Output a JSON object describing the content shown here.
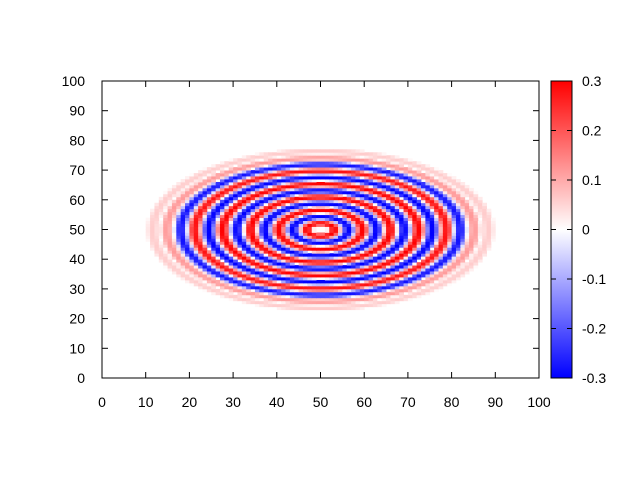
{
  "chart_data": {
    "type": "heatmap",
    "title": "",
    "xlabel": "",
    "ylabel": "",
    "xlim": [
      0,
      100
    ],
    "ylim": [
      0,
      100
    ],
    "x_ticks": [
      0,
      10,
      20,
      30,
      40,
      50,
      60,
      70,
      80,
      90,
      100
    ],
    "y_ticks": [
      0,
      10,
      20,
      30,
      40,
      50,
      60,
      70,
      80,
      90,
      100
    ],
    "grid": false,
    "grid_resolution": 100,
    "field": {
      "center": [
        50,
        50
      ],
      "x_semi_axis": 32,
      "y_semi_axis": 22,
      "ring_radii": [
        3,
        6,
        9,
        12,
        15,
        18,
        21,
        24,
        27,
        30,
        33,
        36
      ],
      "ring_values": [
        0.3,
        -0.3,
        0.3,
        -0.3,
        0.3,
        -0.3,
        0.3,
        -0.3,
        0.28,
        -0.28,
        0.12,
        0.06
      ],
      "center_value": 0.0
    },
    "colorbar": {
      "min": -0.3,
      "max": 0.3,
      "ticks": [
        0.3,
        0.2,
        0.1,
        0,
        -0.1,
        -0.2,
        -0.3
      ],
      "tick_labels": [
        "0.3",
        "0.2",
        "0.1",
        "0",
        "-0.1",
        "-0.2",
        "-0.3"
      ],
      "colormap": [
        "#0000ff",
        "#ffffff",
        "#ff0000"
      ]
    }
  }
}
